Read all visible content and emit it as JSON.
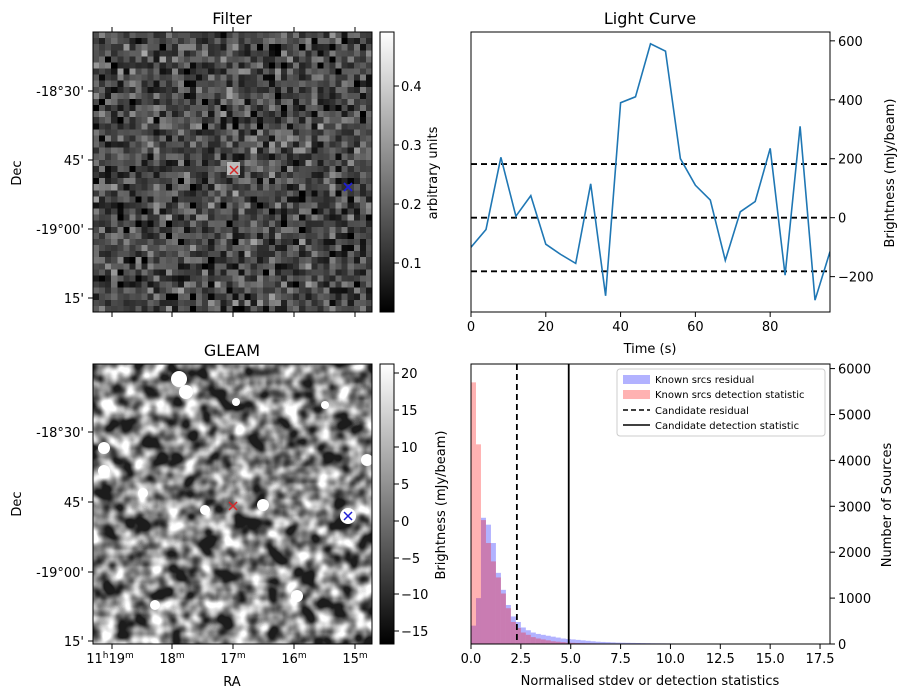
{
  "panels": {
    "filter": {
      "title": "Filter",
      "ylabel": "Dec",
      "yticks": [
        "-18°30'",
        "45'",
        "-19°00'",
        "15'"
      ],
      "colorbar": {
        "label": "arbitrary units",
        "ticks": [
          "0.4",
          "0.3",
          "0.2",
          "0.1"
        ],
        "range": [
          0.02,
          0.49
        ]
      },
      "markers": [
        {
          "label": "candidate",
          "color": "#d62728",
          "shape": "x"
        },
        {
          "label": "known-source",
          "color": "#1f1fd6",
          "shape": "x"
        }
      ]
    },
    "gleam": {
      "title": "GLEAM",
      "ylabel": "Dec",
      "xlabel": "RA",
      "yticks": [
        "-18°30'",
        "45'",
        "-19°00'",
        "15'"
      ],
      "xticks": [
        {
          "h": "11",
          "hs": "h",
          "m": "19",
          "ms": "m"
        },
        {
          "h": "",
          "hs": "",
          "m": "18",
          "ms": "m"
        },
        {
          "h": "",
          "hs": "",
          "m": "17",
          "ms": "m"
        },
        {
          "h": "",
          "hs": "",
          "m": "16",
          "ms": "m"
        },
        {
          "h": "",
          "hs": "",
          "m": "15",
          "ms": "m"
        }
      ],
      "colorbar": {
        "label": "Brightness (mJy/beam)",
        "ticks": [
          "20",
          "15",
          "10",
          "5",
          "0",
          "−5",
          "−10",
          "−15"
        ],
        "range": [
          -17,
          21
        ]
      }
    }
  },
  "chart_data": [
    {
      "type": "line",
      "title": "Light Curve",
      "xlabel": "Time (s)",
      "ylabel": "Brightness (mJy/beam)",
      "xlim": [
        0,
        96
      ],
      "ylim": [
        -320,
        630
      ],
      "xticks": [
        "0",
        "20",
        "40",
        "60",
        "80"
      ],
      "yticks": [
        "600",
        "400",
        "200",
        "0",
        "−200"
      ],
      "series": [
        {
          "color": "#1f77b4",
          "x": [
            0,
            4,
            8,
            12,
            16,
            20,
            24,
            28,
            32,
            36,
            40,
            44,
            48,
            52,
            56,
            60,
            64,
            68,
            72,
            76,
            80,
            84,
            88,
            92,
            96
          ],
          "y": [
            -100,
            -40,
            205,
            5,
            75,
            -90,
            -125,
            -155,
            115,
            -265,
            390,
            410,
            590,
            565,
            200,
            110,
            60,
            -145,
            20,
            55,
            235,
            -195,
            310,
            -280,
            -115
          ]
        }
      ],
      "hlines": [
        {
          "y": 182,
          "style": "dashed"
        },
        {
          "y": 0,
          "style": "dashed"
        },
        {
          "y": -182,
          "style": "dashed"
        }
      ]
    },
    {
      "type": "histogram",
      "xlabel": "Normalised stdev or detection statistics",
      "ylabel": "Number of Sources",
      "xlim": [
        0,
        18
      ],
      "ylim": [
        0,
        6100
      ],
      "xticks": [
        "0.0",
        "2.5",
        "5.0",
        "7.5",
        "10.0",
        "12.5",
        "15.0",
        "17.5"
      ],
      "yticks": [
        "6000",
        "5000",
        "4000",
        "3000",
        "2000",
        "1000",
        "0"
      ],
      "bin_width": 0.25,
      "legend_position": "top-right",
      "series": [
        {
          "name": "Known srcs residual",
          "color": "#0000ff",
          "opacity": 0.3,
          "values": [
            400,
            1000,
            2750,
            2600,
            2200,
            1550,
            1180,
            850,
            600,
            480,
            360,
            300,
            250,
            220,
            200,
            180,
            160,
            140,
            120,
            110,
            100,
            90,
            80,
            70,
            60,
            50,
            45,
            40,
            35,
            30,
            28,
            26,
            24,
            22,
            20,
            18,
            16,
            15,
            14,
            13,
            12,
            11,
            10,
            9,
            8,
            8,
            7,
            7,
            6,
            6,
            5,
            5,
            5,
            4,
            4,
            4,
            3,
            3,
            3,
            3,
            3,
            2,
            2,
            2,
            2,
            2,
            2,
            2,
            2,
            2,
            2,
            2
          ]
        },
        {
          "name": "Known srcs detection statistic",
          "color": "#ff0000",
          "opacity": 0.3,
          "values": [
            5700,
            4350,
            2700,
            2200,
            1800,
            1450,
            1100,
            780,
            480,
            350,
            250,
            200,
            150,
            120,
            100,
            80,
            60,
            50,
            40,
            30,
            25,
            20,
            18,
            16,
            14,
            12,
            10,
            9,
            8,
            7,
            6,
            5,
            5,
            4,
            4,
            3,
            3,
            3,
            2,
            2,
            2,
            2,
            2,
            2,
            2,
            2,
            2,
            2,
            2,
            2,
            2,
            2,
            2,
            2,
            2,
            2,
            2,
            2,
            2,
            2,
            2,
            2,
            2,
            2,
            2,
            2,
            2,
            2,
            2,
            2,
            2,
            2
          ]
        }
      ],
      "vlines": [
        {
          "name": "Candidate residual",
          "x": 2.3,
          "style": "dashed"
        },
        {
          "name": "Candidate detection statistic",
          "x": 4.9,
          "style": "solid"
        }
      ]
    }
  ]
}
